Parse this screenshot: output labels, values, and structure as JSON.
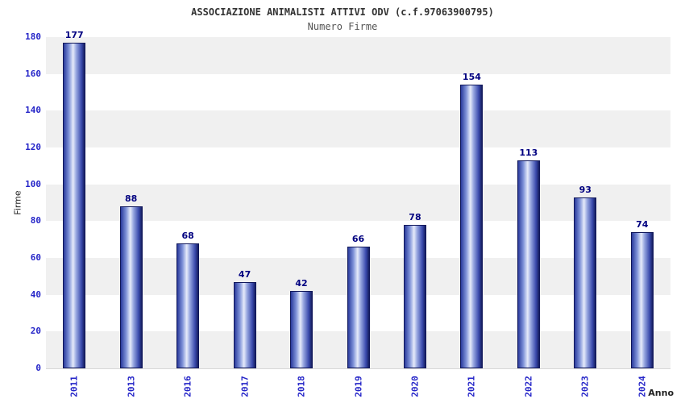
{
  "colors": {
    "tick": "#2525c8",
    "value_label": "#000080",
    "band_dark": "#f0f0f0",
    "band_light": "#ffffff",
    "bar_border": "#10175a"
  },
  "chart_data": {
    "type": "bar",
    "title": "ASSOCIAZIONE ANIMALISTI ATTIVI ODV (c.f.97063900795)",
    "subtitle": "Numero Firme",
    "categories": [
      "2011",
      "2013",
      "2016",
      "2017",
      "2018",
      "2019",
      "2020",
      "2021",
      "2022",
      "2023",
      "2024"
    ],
    "values": [
      177,
      88,
      68,
      47,
      42,
      66,
      78,
      154,
      113,
      93,
      74
    ],
    "xlabel": "Anno",
    "ylabel": "Firme",
    "ylim": [
      0,
      180
    ],
    "ytick_step": 20,
    "grid": "banded-horizontal",
    "legend": "none"
  }
}
